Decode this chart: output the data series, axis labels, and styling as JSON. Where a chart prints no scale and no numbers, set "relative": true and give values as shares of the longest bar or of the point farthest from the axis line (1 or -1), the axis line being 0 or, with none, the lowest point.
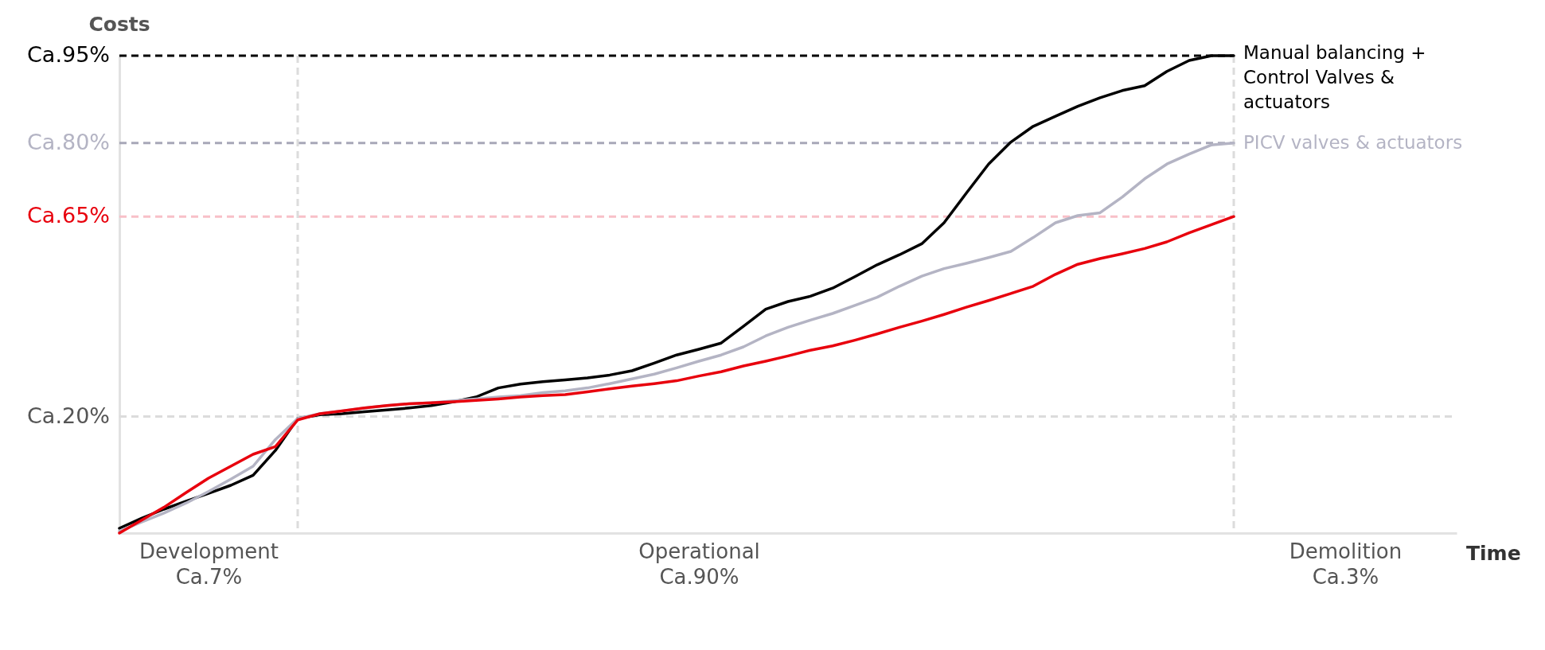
{
  "chart_data": {
    "type": "line",
    "ylabel": "Costs",
    "xlabel": "Time",
    "relative": true,
    "categories": [
      null,
      null,
      null,
      null,
      "Development\nCa.7%",
      null,
      null,
      null,
      null,
      null,
      null,
      null,
      null,
      null,
      null,
      null,
      null,
      null,
      null,
      null,
      null,
      null,
      null,
      null,
      null,
      null,
      "Operational\nCa.90%",
      null,
      null,
      null,
      null,
      null,
      null,
      null,
      null,
      null,
      null,
      null,
      null,
      null,
      null,
      null,
      null,
      null,
      null,
      null,
      null,
      null,
      null,
      null,
      null,
      null,
      null,
      null,
      null,
      "Demolition\nCa.3%",
      null,
      null,
      null,
      null,
      null
    ],
    "series": [
      {
        "name": "Manual balancing + Control Valves & actuators",
        "color": "#000000",
        "values": [
          0.01,
          0.031,
          0.05,
          0.067,
          0.083,
          0.1,
          0.121,
          0.173,
          0.24,
          0.248,
          0.25,
          0.254,
          0.258,
          0.262,
          0.267,
          0.275,
          0.285,
          0.304,
          0.312,
          0.317,
          0.321,
          0.325,
          0.331,
          0.34,
          0.356,
          0.373,
          0.385,
          0.398,
          0.433,
          0.469,
          0.485,
          0.496,
          0.513,
          0.537,
          0.562,
          0.583,
          0.606,
          0.65,
          0.712,
          0.773,
          0.819,
          0.852,
          0.873,
          0.894,
          0.912,
          0.927,
          0.937,
          0.967,
          0.99,
          1.0,
          1.0,
          null,
          null,
          null,
          null,
          null,
          null,
          null,
          null,
          null,
          null
        ]
      },
      {
        "name": "PICV valves & actuators",
        "color": "#b4b4c4",
        "values": [
          0.004,
          0.023,
          0.042,
          0.063,
          0.087,
          0.113,
          0.14,
          0.196,
          0.24,
          0.25,
          0.256,
          0.262,
          0.267,
          0.271,
          0.273,
          0.277,
          0.281,
          0.285,
          0.288,
          0.294,
          0.298,
          0.304,
          0.313,
          0.323,
          0.333,
          0.346,
          0.36,
          0.373,
          0.39,
          0.413,
          0.431,
          0.446,
          0.46,
          0.477,
          0.494,
          0.517,
          0.538,
          0.554,
          0.565,
          0.577,
          0.59,
          0.619,
          0.65,
          0.665,
          0.671,
          0.704,
          0.742,
          0.773,
          0.794,
          0.813,
          0.817,
          null,
          null,
          null,
          null,
          null,
          null,
          null,
          null,
          null,
          null
        ]
      },
      {
        "color": "#e8000d",
        "values": [
          0,
          0.027,
          0.054,
          0.085,
          0.115,
          0.14,
          0.165,
          0.181,
          0.237,
          0.25,
          0.256,
          0.262,
          0.267,
          0.271,
          0.273,
          0.275,
          0.278,
          0.281,
          0.285,
          0.288,
          0.29,
          0.296,
          0.302,
          0.308,
          0.313,
          0.319,
          0.329,
          0.338,
          0.35,
          0.36,
          0.371,
          0.383,
          0.392,
          0.404,
          0.417,
          0.431,
          0.444,
          0.458,
          0.473,
          0.487,
          0.502,
          0.517,
          0.542,
          0.563,
          0.575,
          0.585,
          0.596,
          0.61,
          0.629,
          0.646,
          0.663,
          null,
          null,
          null,
          null,
          null,
          null,
          null,
          null,
          null,
          null
        ]
      }
    ],
    "ref_lines": [
      {
        "axis": "y",
        "value": 1.0,
        "label": "Ca.95%",
        "color": "#000000",
        "line_style": "dashed"
      },
      {
        "axis": "y",
        "value": 0.817,
        "label": "Ca.80%",
        "color": "#a8a8b8",
        "line_style": "dashed"
      },
      {
        "axis": "y",
        "value": 0.663,
        "label": "Ca.65%",
        "color": "#f8c0c8",
        "line_style": "dashed"
      },
      {
        "axis": "y",
        "value": 0.244,
        "label": "Ca.20%",
        "color": "#dcdcdc",
        "line_style": "dashed"
      }
    ],
    "line_style": "solid"
  }
}
